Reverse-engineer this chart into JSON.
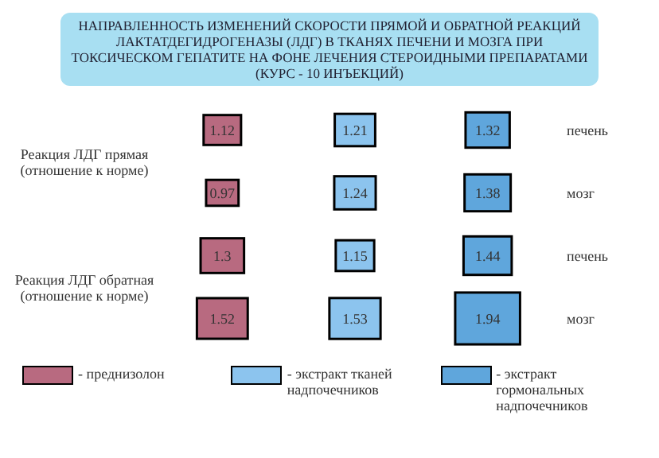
{
  "chart_data": {
    "type": "other",
    "title": "НАПРАВЛЕННОСТЬ ИЗМЕНЕНИЙ СКОРОСТИ ПРЯМОЙ И ОБРАТНОЙ РЕАКЦИЙ ЛАКТАТДЕГИДРОГЕНАЗЫ (ЛДГ) В ТКАНЯХ ПЕЧЕНИ И МОЗГА ПРИ ТОКСИЧЕСКОМ ГЕПАТИТЕ НА ФОНЕ ЛЕЧЕНИЯ СТЕРОИДНЫМИ ПРЕПАРАТАМИ (КУРС - 10 ИНЪЕКЦИЙ)",
    "categories": [
      "печень",
      "мозг",
      "печень",
      "мозг"
    ],
    "annotations": [
      "Реакция ЛДГ прямая (отношение к норме)",
      "Реакция ЛДГ обратная (отношение к норме)"
    ],
    "series": [
      {
        "name": "- преднизолон",
        "color": "#b86a80",
        "values": [
          1.12,
          0.97,
          1.3,
          1.52
        ]
      },
      {
        "name": "- экстракт тканей надпочечников",
        "color": "#8cc4ee",
        "values": [
          1.21,
          1.24,
          1.15,
          1.53
        ]
      },
      {
        "name": "- экстракт гормональных надпочечников",
        "color": "#5fa6dc",
        "values": [
          1.32,
          1.38,
          1.44,
          1.94
        ]
      }
    ],
    "data_labels": true,
    "legend": "bottom"
  }
}
